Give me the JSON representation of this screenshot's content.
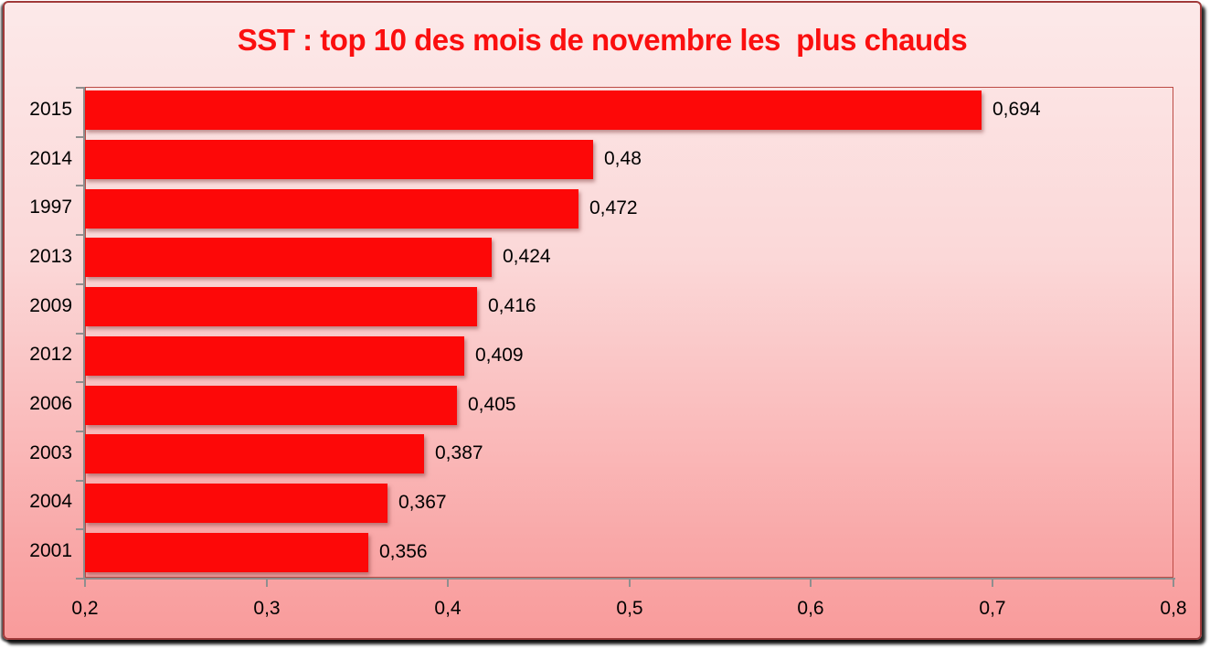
{
  "chart_data": {
    "type": "bar",
    "orientation": "horizontal",
    "title": "SST : top 10 des mois de novembre les  plus chauds",
    "title_color": "#fb0f0f",
    "categories": [
      "2015",
      "2014",
      "1997",
      "2013",
      "2009",
      "2012",
      "2006",
      "2003",
      "2004",
      "2001"
    ],
    "values": [
      0.694,
      0.48,
      0.472,
      0.424,
      0.416,
      0.409,
      0.405,
      0.387,
      0.367,
      0.356
    ],
    "value_labels": [
      "0,694",
      "0,48",
      "0,472",
      "0,424",
      "0,416",
      "0,409",
      "0,405",
      "0,387",
      "0,367",
      "0,356"
    ],
    "x_tick_labels": [
      "0,2",
      "0,3",
      "0,4",
      "0,5",
      "0,6",
      "0,7",
      "0,8"
    ],
    "xlim": [
      0.2,
      0.8
    ],
    "bar_color": "#fd0808",
    "axis_color": "#8f8f8f",
    "plot_border_color": "#bc4b45",
    "grid": false,
    "legend": false
  }
}
